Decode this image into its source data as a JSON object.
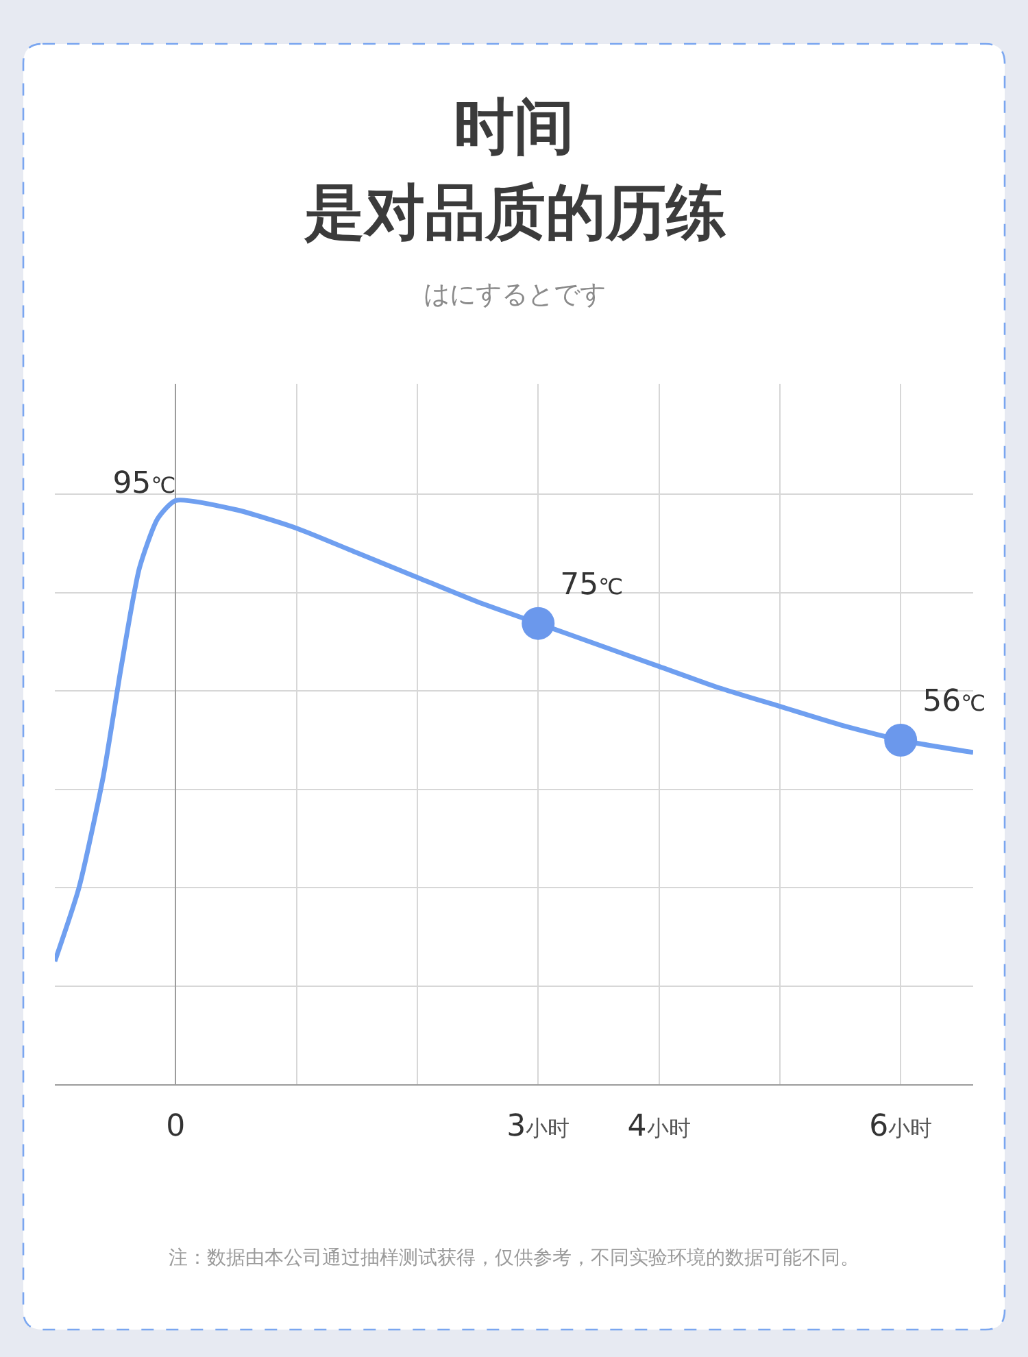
{
  "chart_data": {
    "type": "line",
    "title": "时间",
    "subtitle": "是对品质的历练",
    "annotations": [
      "はにするとです",
      "注：数据由本公司通过抽样测试获得，仅供参考，不同实验环境的数据可能不同。"
    ],
    "xlim": [
      -1,
      6.6
    ],
    "xticks": [
      0,
      {
        "value": 1,
        "label": null
      },
      {
        "value": 2,
        "label": null
      },
      {
        "value": 3,
        "label": "3小时"
      },
      {
        "value": 4,
        "label": "4小时"
      },
      {
        "value": 5,
        "label": null
      },
      {
        "value": 6,
        "label": "6小时"
      }
    ],
    "ylim": [
      0,
      114
    ],
    "yticks": [
      {
        "value": 16,
        "label": null
      },
      {
        "value": 32,
        "label": null
      },
      {
        "value": 48,
        "label": null
      },
      {
        "value": 64,
        "label": null
      },
      {
        "value": 80,
        "label": null
      },
      {
        "value": 96,
        "label": null
      }
    ],
    "tick_labels": "x",
    "grid": true,
    "series": [
      {
        "color": "#6f9ff0",
        "marker": "none",
        "x": [
          -1.0,
          -0.8,
          -0.6,
          -0.45,
          -0.3,
          -0.15,
          0,
          0.5,
          1,
          1.5,
          2,
          2.5,
          3,
          3.5,
          4,
          4.5,
          5,
          5.5,
          6,
          6.6
        ],
        "values": [
          20,
          32,
          50,
          68,
          84,
          92,
          95,
          93.5,
          90.5,
          86.5,
          82.5,
          78.5,
          75,
          71.5,
          68,
          64.5,
          61.5,
          58.5,
          56,
          54
        ],
        "value_labels": [
          null,
          null,
          null,
          null,
          null,
          null,
          "95℃",
          null,
          null,
          null,
          null,
          null,
          null,
          null,
          null,
          null,
          null,
          null,
          null,
          null
        ]
      },
      {
        "type": "scatter",
        "color": "#6b98ec",
        "marker": "circle",
        "x": [
          3,
          6
        ],
        "values": [
          75,
          56
        ],
        "value_labels": [
          "75℃",
          "56℃"
        ]
      }
    ]
  }
}
